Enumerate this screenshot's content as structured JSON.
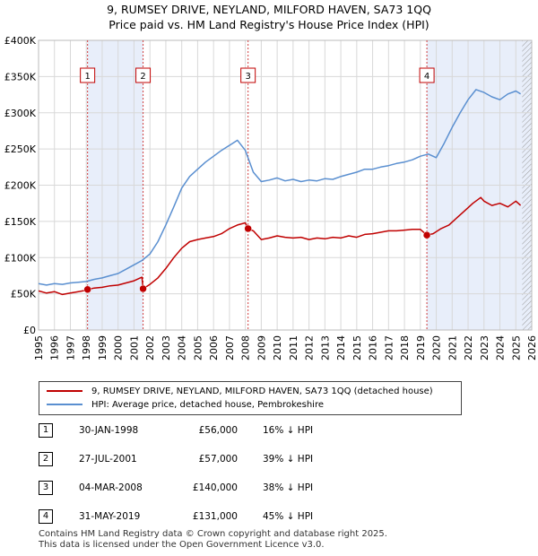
{
  "title": {
    "line1": "9, RUMSEY DRIVE, NEYLAND, MILFORD HAVEN, SA73 1QQ",
    "line2": "Price paid vs. HM Land Registry's House Price Index (HPI)"
  },
  "legend": {
    "property_label": "9, RUMSEY DRIVE, NEYLAND, MILFORD HAVEN, SA73 1QQ (detached house)",
    "hpi_label": "HPI: Average price, detached house, Pembrokeshire"
  },
  "colors": {
    "property": "#c00000",
    "hpi": "#5a8fd0",
    "shade": "#e8eefa",
    "grid": "#d8d8d8"
  },
  "sales": [
    {
      "num": "1",
      "date": "30-JAN-1998",
      "price": "£56,000",
      "hpi": "16% ↓ HPI"
    },
    {
      "num": "2",
      "date": "27-JUL-2001",
      "price": "£57,000",
      "hpi": "39% ↓ HPI"
    },
    {
      "num": "3",
      "date": "04-MAR-2008",
      "price": "£140,000",
      "hpi": "38% ↓ HPI"
    },
    {
      "num": "4",
      "date": "31-MAY-2019",
      "price": "£131,000",
      "hpi": "45% ↓ HPI"
    }
  ],
  "footer": {
    "line1": "Contains HM Land Registry data © Crown copyright and database right 2025.",
    "line2": "This data is licensed under the Open Government Licence v3.0."
  },
  "chart_data": {
    "type": "line",
    "xlim": [
      1995,
      2026
    ],
    "ylim": [
      0,
      400000
    ],
    "x_ticks": [
      "1995",
      "1996",
      "1997",
      "1998",
      "1999",
      "2000",
      "2001",
      "2002",
      "2003",
      "2004",
      "2005",
      "2006",
      "2007",
      "2008",
      "2009",
      "2010",
      "2011",
      "2012",
      "2013",
      "2014",
      "2015",
      "2016",
      "2017",
      "2018",
      "2019",
      "2020",
      "2021",
      "2022",
      "2023",
      "2024",
      "2025",
      "2026"
    ],
    "y_ticks": [
      {
        "value": 0,
        "label": "£0"
      },
      {
        "value": 50000,
        "label": "£50K"
      },
      {
        "value": 100000,
        "label": "£100K"
      },
      {
        "value": 150000,
        "label": "£150K"
      },
      {
        "value": 200000,
        "label": "£200K"
      },
      {
        "value": 250000,
        "label": "£250K"
      },
      {
        "value": 300000,
        "label": "£300K"
      },
      {
        "value": 350000,
        "label": "£350K"
      },
      {
        "value": 400000,
        "label": "£400K"
      }
    ],
    "sale_markers": [
      {
        "label": "1",
        "x": 1998.08,
        "price": 56000
      },
      {
        "label": "2",
        "x": 2001.57,
        "price": 57000
      },
      {
        "label": "3",
        "x": 2008.17,
        "price": 140000
      },
      {
        "label": "4",
        "x": 2019.41,
        "price": 131000
      }
    ],
    "shaded_ranges": [
      [
        1998.08,
        2001.57
      ],
      [
        2019.41,
        2026
      ]
    ],
    "hatched_from": 2025.4,
    "series": [
      {
        "name": "9, RUMSEY DRIVE, NEYLAND, MILFORD HAVEN, SA73 1QQ (detached house)",
        "x": [
          1995.0,
          1995.5,
          1996.0,
          1996.5,
          1997.0,
          1997.5,
          1998.0,
          1998.08,
          1998.5,
          1999.0,
          1999.5,
          2000.0,
          2000.5,
          2001.0,
          2001.5,
          2001.57,
          2002.0,
          2002.5,
          2003.0,
          2003.5,
          2004.0,
          2004.5,
          2005.0,
          2005.5,
          2006.0,
          2006.5,
          2007.0,
          2007.5,
          2008.0,
          2008.17,
          2008.5,
          2009.0,
          2009.5,
          2010.0,
          2010.5,
          2011.0,
          2011.5,
          2012.0,
          2012.5,
          2013.0,
          2013.5,
          2014.0,
          2014.5,
          2015.0,
          2015.5,
          2016.0,
          2016.5,
          2017.0,
          2017.5,
          2018.0,
          2018.5,
          2019.0,
          2019.41,
          2019.8,
          2020.3,
          2020.8,
          2021.3,
          2021.8,
          2022.3,
          2022.8,
          2023.0,
          2023.5,
          2024.0,
          2024.5,
          2025.0,
          2025.3
        ],
        "y": [
          54000,
          51000,
          53000,
          49000,
          51000,
          53000,
          55000,
          56000,
          58000,
          59000,
          61000,
          62000,
          65000,
          68000,
          73000,
          57000,
          63000,
          72000,
          85000,
          100000,
          113000,
          122000,
          125000,
          127000,
          129000,
          133000,
          140000,
          145000,
          148000,
          140000,
          137000,
          125000,
          127000,
          130000,
          128000,
          127000,
          128000,
          125000,
          127000,
          126000,
          128000,
          127000,
          130000,
          128000,
          132000,
          133000,
          135000,
          137000,
          137000,
          138000,
          139000,
          139000,
          131000,
          133000,
          140000,
          145000,
          155000,
          165000,
          175000,
          183000,
          178000,
          172000,
          175000,
          170000,
          178000,
          172000
        ]
      },
      {
        "name": "HPI: Average price, detached house, Pembrokeshire",
        "x": [
          1995.0,
          1995.5,
          1996.0,
          1996.5,
          1997.0,
          1997.5,
          1998.0,
          1998.5,
          1999.0,
          1999.5,
          2000.0,
          2000.5,
          2001.0,
          2001.5,
          2002.0,
          2002.5,
          2003.0,
          2003.5,
          2004.0,
          2004.5,
          2005.0,
          2005.5,
          2006.0,
          2006.5,
          2007.0,
          2007.5,
          2008.0,
          2008.5,
          2009.0,
          2009.5,
          2010.0,
          2010.5,
          2011.0,
          2011.5,
          2012.0,
          2012.5,
          2013.0,
          2013.5,
          2014.0,
          2014.5,
          2015.0,
          2015.5,
          2016.0,
          2016.5,
          2017.0,
          2017.5,
          2018.0,
          2018.5,
          2019.0,
          2019.5,
          2020.0,
          2020.5,
          2021.0,
          2021.5,
          2022.0,
          2022.5,
          2023.0,
          2023.5,
          2024.0,
          2024.5,
          2025.0,
          2025.3
        ],
        "y": [
          64000,
          62000,
          64000,
          63000,
          65000,
          66000,
          67000,
          70000,
          72000,
          75000,
          78000,
          84000,
          90000,
          96000,
          105000,
          122000,
          145000,
          170000,
          196000,
          212000,
          222000,
          232000,
          240000,
          248000,
          255000,
          262000,
          248000,
          218000,
          205000,
          207000,
          210000,
          206000,
          208000,
          205000,
          207000,
          206000,
          209000,
          208000,
          212000,
          215000,
          218000,
          222000,
          222000,
          225000,
          227000,
          230000,
          232000,
          235000,
          240000,
          243000,
          238000,
          258000,
          280000,
          300000,
          318000,
          332000,
          328000,
          322000,
          318000,
          326000,
          330000,
          326000
        ]
      }
    ]
  }
}
